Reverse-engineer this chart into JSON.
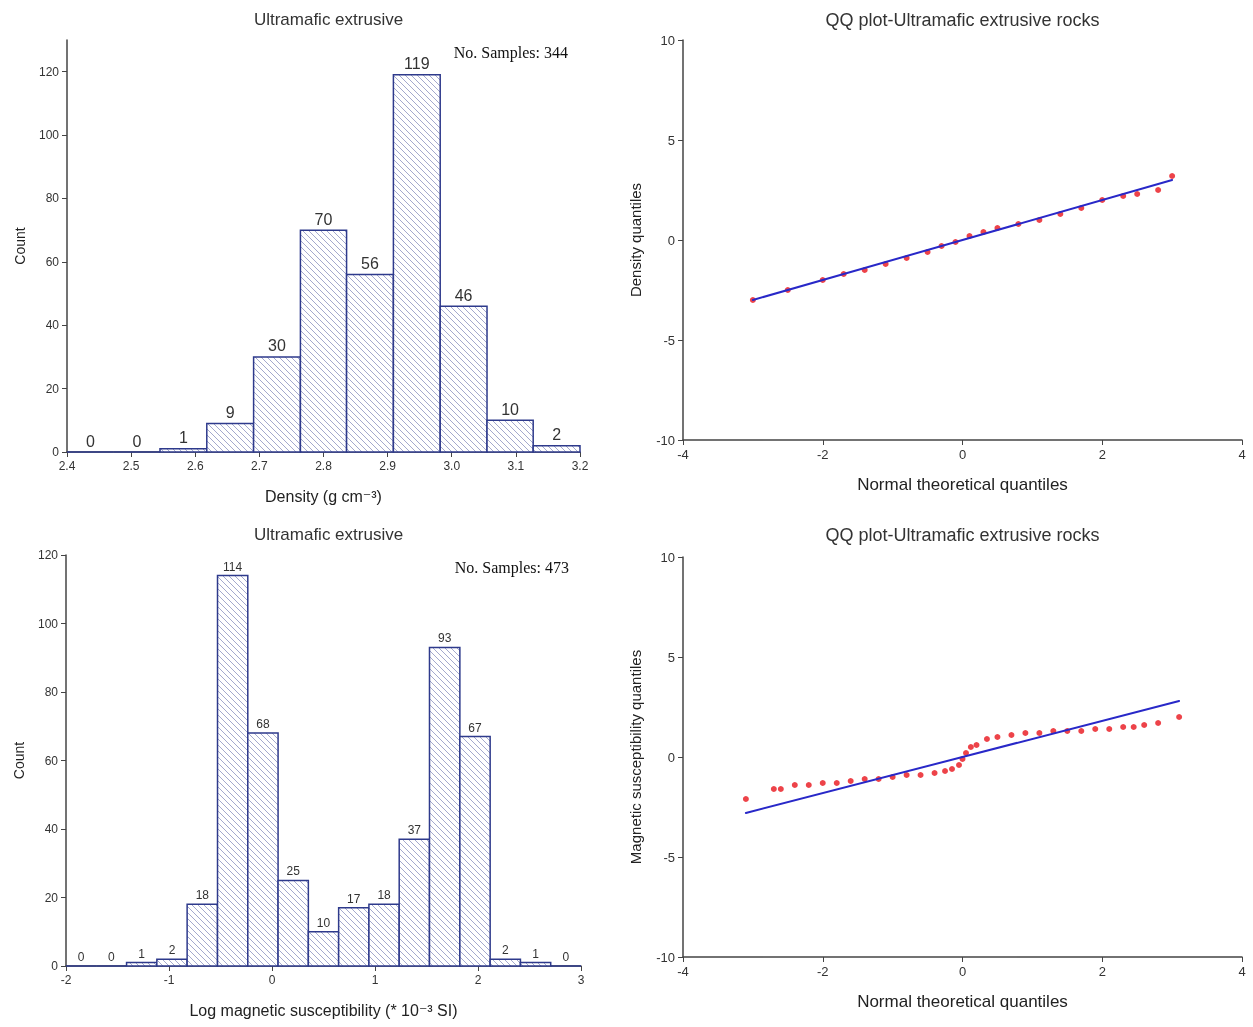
{
  "chart_data": [
    {
      "type": "histogram",
      "title": "Ultramafic extrusive",
      "xlabel": "Density (g cm⁻³)",
      "ylabel": "Count",
      "bins": [
        2.4,
        2.473,
        2.545,
        2.618,
        2.691,
        2.764,
        2.836,
        2.909,
        2.982,
        3.055,
        3.127,
        3.2
      ],
      "values": [
        0,
        0,
        1,
        9,
        30,
        70,
        56,
        119,
        46,
        10,
        2
      ],
      "color": "#2e3a8c",
      "data_labels": true,
      "grid": false,
      "xlim": [
        2.4,
        3.2
      ],
      "xticks": [
        2.4,
        2.5,
        2.6,
        2.7,
        2.8,
        2.9,
        {
          "value": 3,
          "label": "3.0"
        },
        3.1,
        3.2
      ],
      "ylim": [
        0,
        130
      ],
      "yticks": [
        0,
        20,
        40,
        60,
        80,
        100,
        120
      ],
      "annotations": [
        "No. Samples: 344"
      ]
    },
    {
      "type": "scatter",
      "title": "QQ plot-Ultramafic extrusive rocks",
      "xlabel": "Normal theoretical quantiles",
      "ylabel": "Density quantiles",
      "grid": false,
      "xlim": [
        -4,
        4
      ],
      "xticks": [
        -4,
        -2,
        0,
        2,
        4
      ],
      "ylim": [
        -10,
        10
      ],
      "yticks": [
        -10,
        -5,
        0,
        5,
        10
      ],
      "series": [
        {
          "type": "scatter",
          "marker": "circle",
          "color": "#e8141c",
          "x": [
            -3.0,
            -2.5,
            -2.0,
            -1.7,
            -1.4,
            -1.1,
            -0.8,
            -0.5,
            -0.3,
            -0.1,
            0.1,
            0.3,
            0.5,
            0.8,
            1.1,
            1.4,
            1.7,
            2.0,
            2.3,
            2.5,
            2.8,
            3.0
          ],
          "values": [
            -3.0,
            -2.5,
            -2.0,
            -1.7,
            -1.5,
            -1.2,
            -0.9,
            -0.6,
            -0.3,
            -0.1,
            0.2,
            0.4,
            0.6,
            0.8,
            1.0,
            1.3,
            1.6,
            2.0,
            2.2,
            2.3,
            2.5,
            3.2
          ]
        },
        {
          "type": "line",
          "marker": "none",
          "color": "#2828c8",
          "x": [
            -3.0,
            3.0
          ],
          "values": [
            -3.0,
            3.0
          ]
        }
      ]
    },
    {
      "type": "histogram",
      "title": "Ultramafic extrusive",
      "xlabel": "Log magnetic susceptibility (* 10⁻³ SI)",
      "ylabel": "Count",
      "bins": [
        -2,
        -1.706,
        -1.412,
        -1.118,
        -0.824,
        -0.529,
        -0.235,
        0.059,
        0.353,
        0.647,
        0.941,
        1.235,
        1.529,
        1.824,
        2.118,
        2.412,
        2.706,
        3
      ],
      "values": [
        0,
        0,
        1,
        2,
        18,
        114,
        68,
        25,
        10,
        17,
        18,
        37,
        93,
        67,
        2,
        1,
        0
      ],
      "color": "#2e3a8c",
      "data_labels": true,
      "grid": false,
      "xlim": [
        -2,
        3
      ],
      "xticks": [
        -2,
        -1,
        0,
        1,
        2,
        3
      ],
      "ylim": [
        0,
        120
      ],
      "yticks": [
        0,
        20,
        40,
        60,
        80,
        100,
        120
      ],
      "annotations": [
        "No. Samples: 473"
      ]
    },
    {
      "type": "scatter",
      "title": "QQ plot-Ultramafic extrusive rocks",
      "xlabel": "Normal theoretical quantiles",
      "ylabel": "Magnetic susceptibility quantiles",
      "grid": false,
      "xlim": [
        -4,
        4
      ],
      "xticks": [
        -4,
        -2,
        0,
        2,
        4
      ],
      "ylim": [
        -10,
        10
      ],
      "yticks": [
        -10,
        -5,
        0,
        5,
        10
      ],
      "series": [
        {
          "type": "scatter",
          "marker": "circle",
          "color": "#e8141c",
          "x": [
            -3.1,
            -2.7,
            -2.6,
            -2.4,
            -2.2,
            -2.0,
            -1.8,
            -1.6,
            -1.4,
            -1.2,
            -1.0,
            -0.8,
            -0.6,
            -0.4,
            -0.25,
            -0.15,
            -0.05,
            0.0,
            0.05,
            0.12,
            0.2,
            0.35,
            0.5,
            0.7,
            0.9,
            1.1,
            1.3,
            1.5,
            1.7,
            1.9,
            2.1,
            2.3,
            2.45,
            2.6,
            2.8,
            3.1
          ],
          "values": [
            -2.1,
            -1.6,
            -1.6,
            -1.4,
            -1.4,
            -1.3,
            -1.3,
            -1.2,
            -1.1,
            -1.1,
            -1.0,
            -0.9,
            -0.9,
            -0.8,
            -0.7,
            -0.6,
            -0.4,
            -0.1,
            0.2,
            0.5,
            0.6,
            0.9,
            1.0,
            1.1,
            1.2,
            1.2,
            1.3,
            1.3,
            1.3,
            1.4,
            1.4,
            1.5,
            1.5,
            1.6,
            1.7,
            2.0
          ]
        },
        {
          "type": "line",
          "marker": "none",
          "color": "#2828c8",
          "x": [
            -3.1,
            3.1
          ],
          "values": [
            -2.8,
            2.8
          ]
        }
      ]
    }
  ]
}
